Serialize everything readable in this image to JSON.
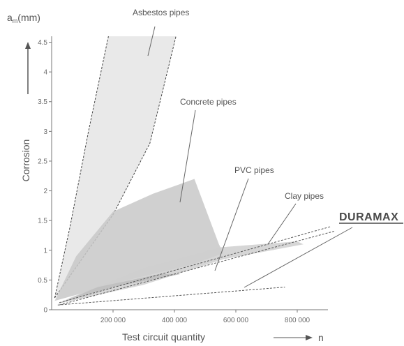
{
  "chart_data": {
    "type": "area",
    "xlabel": "Test circuit quantity",
    "x_unit": "n",
    "ylabel": "Corrosion",
    "y_unit_main": "a",
    "y_unit_sub": "m",
    "y_unit_tail": "(mm)",
    "xlim": [
      0,
      900000
    ],
    "ylim": [
      0,
      4.6
    ],
    "x_ticks": [
      {
        "value": 200000,
        "label": "200 000"
      },
      {
        "value": 400000,
        "label": "400 000"
      },
      {
        "value": 600000,
        "label": "600 000"
      },
      {
        "value": 800000,
        "label": "800 000"
      }
    ],
    "y_ticks": [
      {
        "value": 0,
        "label": "0"
      },
      {
        "value": 0.5,
        "label": "0.5"
      },
      {
        "value": 1,
        "label": "1"
      },
      {
        "value": 1.5,
        "label": "1.5"
      },
      {
        "value": 2,
        "label": "2"
      },
      {
        "value": 2.5,
        "label": "2.5"
      },
      {
        "value": 3,
        "label": "3"
      },
      {
        "value": 3.5,
        "label": "3.5"
      },
      {
        "value": 4,
        "label": "4"
      },
      {
        "value": 4.5,
        "label": "4.5"
      }
    ],
    "series": [
      {
        "name": "Asbestos pipes",
        "color": "#e9e9e9",
        "upper": [
          [
            10000,
            0.2
          ],
          [
            60000,
            1.4
          ],
          [
            120000,
            3.0
          ],
          [
            185000,
            4.6
          ]
        ],
        "lower": [
          [
            10000,
            0.2
          ],
          [
            200000,
            1.6
          ],
          [
            320000,
            2.8
          ],
          [
            405000,
            4.6
          ]
        ],
        "label_anchor": [
          320000,
          4.1
        ]
      },
      {
        "name": "Concrete pipes",
        "color": "#c8c8c8",
        "boundary": [
          [
            10000,
            0.15
          ],
          [
            80000,
            0.9
          ],
          [
            200000,
            1.65
          ],
          [
            330000,
            1.95
          ],
          [
            465000,
            2.2
          ],
          [
            545000,
            1.1
          ],
          [
            560000,
            0.95
          ],
          [
            450000,
            0.75
          ],
          [
            250000,
            0.5
          ],
          [
            80000,
            0.25
          ]
        ],
        "label_anchor": [
          265000,
          1.65
        ]
      },
      {
        "name": "PVC pipes",
        "color": "#cfcfcf",
        "boundary": [
          [
            20000,
            0.1
          ],
          [
            300000,
            0.42
          ],
          [
            560000,
            0.85
          ],
          [
            820000,
            1.1
          ],
          [
            800000,
            1.15
          ],
          [
            550000,
            1.05
          ],
          [
            300000,
            0.7
          ],
          [
            60000,
            0.2
          ]
        ],
        "label_anchor": [
          560000,
          0.5
        ]
      },
      {
        "name": "Clay pipes",
        "color": "#bdbdbd",
        "boundary": [
          [
            20000,
            0.1
          ],
          [
            200000,
            0.38
          ],
          [
            420000,
            0.6
          ],
          [
            350000,
            0.6
          ],
          [
            150000,
            0.38
          ]
        ],
        "label_anchor": [
          740000,
          1.05
        ]
      },
      {
        "name": "DURAMAX",
        "color": "#555555",
        "lines": [
          [
            [
              20000,
              0.08
            ],
            [
              760000,
              0.38
            ]
          ],
          [
            [
              25000,
              0.12
            ],
            [
              910000,
              1.4
            ]
          ],
          [
            [
              25000,
              0.08
            ],
            [
              920000,
              1.32
            ]
          ]
        ],
        "label_anchor": [
          340000,
          0.3
        ]
      }
    ],
    "grid": false
  }
}
